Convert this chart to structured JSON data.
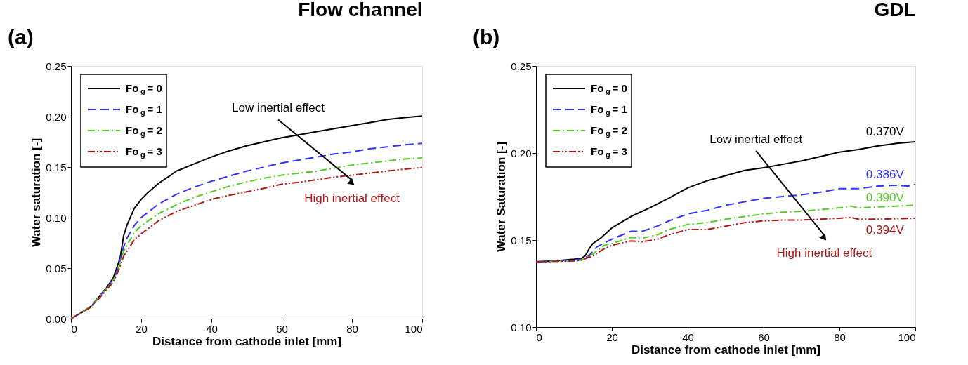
{
  "chart_data": [
    {
      "type": "line",
      "title": "Flow channel",
      "xlabel": "Distance from cathode inlet [mm]",
      "ylabel": "Water saturation [-]",
      "xlim": [
        0,
        100
      ],
      "xticks": [
        0,
        20,
        40,
        60,
        80,
        100
      ],
      "ylim": [
        0,
        0.25
      ],
      "yticks": [
        {
          "value": 0,
          "label": "0.00"
        },
        0.05,
        {
          "value": 0.1,
          "label": "0.10"
        },
        0.15,
        {
          "value": 0.2,
          "label": "0.20"
        },
        0.25
      ],
      "grid": false,
      "legend": "top left",
      "marker": "none",
      "annotations": [
        "(a)",
        "Low inertial effect",
        "High inertial effect"
      ],
      "series": [
        {
          "name": "Fo$_{g}$ = 0",
          "color": "#000000",
          "line_style": "solid",
          "x": [
            0,
            3,
            6,
            8,
            10,
            12,
            13,
            14,
            15,
            16,
            18,
            20,
            22,
            25,
            28,
            30,
            35,
            40,
            45,
            50,
            55,
            60,
            65,
            70,
            75,
            80,
            85,
            90,
            95,
            100
          ],
          "values": [
            0,
            0.006,
            0.013,
            0.022,
            0.03,
            0.04,
            0.05,
            0.06,
            0.082,
            0.093,
            0.109,
            0.118,
            0.125,
            0.134,
            0.141,
            0.146,
            0.153,
            0.16,
            0.166,
            0.171,
            0.175,
            0.179,
            0.182,
            0.185,
            0.188,
            0.191,
            0.194,
            0.197,
            0.199,
            0.2005
          ]
        },
        {
          "name": "Fo$_{g}$ = 1",
          "color": "#3333ff",
          "line_style": "dashed",
          "x": [
            0,
            3,
            6,
            8,
            10,
            12,
            13,
            14,
            15,
            16,
            18,
            20,
            25,
            30,
            35,
            40,
            45,
            50,
            55,
            60,
            65,
            70,
            75,
            80,
            85,
            90,
            95,
            100
          ],
          "values": [
            0,
            0.006,
            0.013,
            0.022,
            0.029,
            0.039,
            0.046,
            0.058,
            0.071,
            0.08,
            0.092,
            0.1,
            0.1135,
            0.123,
            0.13,
            0.136,
            0.141,
            0.146,
            0.15,
            0.154,
            0.157,
            0.16,
            0.163,
            0.165,
            0.168,
            0.17,
            0.172,
            0.1735
          ]
        },
        {
          "name": "Fo$_{g}$ = 2",
          "color": "#55cc22",
          "line_style": "dashdot",
          "x": [
            0,
            3,
            6,
            8,
            10,
            12,
            13,
            14,
            15,
            16,
            18,
            20,
            25,
            30,
            35,
            40,
            45,
            50,
            55,
            60,
            65,
            70,
            75,
            80,
            85,
            90,
            95,
            100
          ],
          "values": [
            0,
            0.006,
            0.013,
            0.021,
            0.029,
            0.038,
            0.045,
            0.055,
            0.067,
            0.073,
            0.085,
            0.092,
            0.104,
            0.1125,
            0.12,
            0.1255,
            0.131,
            0.1354,
            0.139,
            0.142,
            0.144,
            0.146,
            0.149,
            0.152,
            0.154,
            0.156,
            0.158,
            0.159
          ]
        },
        {
          "name": "Fo$_{g}$ = 3",
          "color": "#b01818",
          "line_style": "dashdotdot",
          "x": [
            0,
            3,
            6,
            8,
            10,
            12,
            13,
            14,
            15,
            16,
            18,
            20,
            25,
            30,
            35,
            40,
            45,
            50,
            55,
            60,
            65,
            70,
            75,
            80,
            85,
            90,
            95,
            100
          ],
          "values": [
            0,
            0.006,
            0.012,
            0.02,
            0.028,
            0.036,
            0.043,
            0.052,
            0.062,
            0.067,
            0.078,
            0.084,
            0.097,
            0.106,
            0.112,
            0.118,
            0.122,
            0.1255,
            0.129,
            0.133,
            0.135,
            0.1375,
            0.14,
            0.142,
            0.144,
            0.146,
            0.148,
            0.1495
          ]
        }
      ]
    },
    {
      "type": "line",
      "title": "GDL",
      "xlabel": "Distance from cathode inlet [mm]",
      "ylabel": "Water Saturation [-]",
      "xlim": [
        0,
        100
      ],
      "xticks": [
        0,
        20,
        40,
        60,
        80,
        100
      ],
      "ylim": [
        0.1,
        0.25
      ],
      "yticks": [
        {
          "value": 0.1,
          "label": "0.10"
        },
        0.15,
        {
          "value": 0.2,
          "label": "0.20"
        },
        0.25
      ],
      "grid": false,
      "legend": "top left",
      "marker": "none",
      "annotations": [
        "(b)",
        "Low inertial effect",
        "High inertial effect",
        "0.370V",
        "0.386V",
        "0.390V",
        "0.394V"
      ],
      "series": [
        {
          "name": "Fo$_{g}$ = 0",
          "color": "#000000",
          "line_style": "solid",
          "x": [
            0,
            5,
            10,
            12,
            13,
            14,
            15,
            17,
            20,
            25,
            30,
            35,
            40,
            45,
            50,
            55,
            60,
            65,
            70,
            75,
            80,
            85,
            90,
            95,
            100
          ],
          "values": [
            0.1375,
            0.138,
            0.139,
            0.1395,
            0.141,
            0.145,
            0.148,
            0.151,
            0.157,
            0.1635,
            0.1685,
            0.174,
            0.18,
            0.184,
            0.187,
            0.19,
            0.1915,
            0.1935,
            0.1955,
            0.198,
            0.2005,
            0.202,
            0.204,
            0.2055,
            0.2065
          ]
        },
        {
          "name": "Fo$_{g}$ = 1",
          "color": "#3333ff",
          "line_style": "dashed",
          "x": [
            0,
            5,
            10,
            12,
            14,
            16,
            20,
            25,
            28,
            32,
            35,
            40,
            45,
            50,
            55,
            60,
            65,
            70,
            75,
            80,
            85,
            90,
            95,
            98,
            100
          ],
          "values": [
            0.1375,
            0.138,
            0.1385,
            0.139,
            0.141,
            0.146,
            0.1505,
            0.155,
            0.155,
            0.158,
            0.161,
            0.165,
            0.167,
            0.17,
            0.172,
            0.174,
            0.175,
            0.176,
            0.1775,
            0.1795,
            0.1795,
            0.181,
            0.1815,
            0.181,
            0.182
          ]
        },
        {
          "name": "Fo$_{g}$ = 2",
          "color": "#55cc22",
          "line_style": "dashdot",
          "x": [
            0,
            5,
            10,
            12,
            15,
            18,
            20,
            25,
            28,
            32,
            35,
            40,
            45,
            50,
            55,
            60,
            65,
            70,
            75,
            80,
            83,
            85,
            90,
            100
          ],
          "values": [
            0.1375,
            0.1378,
            0.138,
            0.1385,
            0.142,
            0.147,
            0.148,
            0.1515,
            0.151,
            0.153,
            0.156,
            0.159,
            0.16,
            0.162,
            0.1635,
            0.165,
            0.166,
            0.1665,
            0.1675,
            0.1685,
            0.1695,
            0.1685,
            0.169,
            0.17
          ]
        },
        {
          "name": "Fo$_{g}$ = 3",
          "color": "#b01818",
          "line_style": "dashdotdot",
          "x": [
            0,
            5,
            10,
            12,
            15,
            18,
            20,
            25,
            28,
            32,
            35,
            40,
            45,
            50,
            55,
            60,
            65,
            70,
            75,
            80,
            83,
            85,
            90,
            100
          ],
          "values": [
            0.1375,
            0.1378,
            0.138,
            0.1385,
            0.141,
            0.145,
            0.147,
            0.1495,
            0.149,
            0.1505,
            0.153,
            0.156,
            0.156,
            0.158,
            0.16,
            0.161,
            0.1615,
            0.1615,
            0.162,
            0.1625,
            0.163,
            0.162,
            0.162,
            0.1625
          ]
        }
      ]
    }
  ]
}
